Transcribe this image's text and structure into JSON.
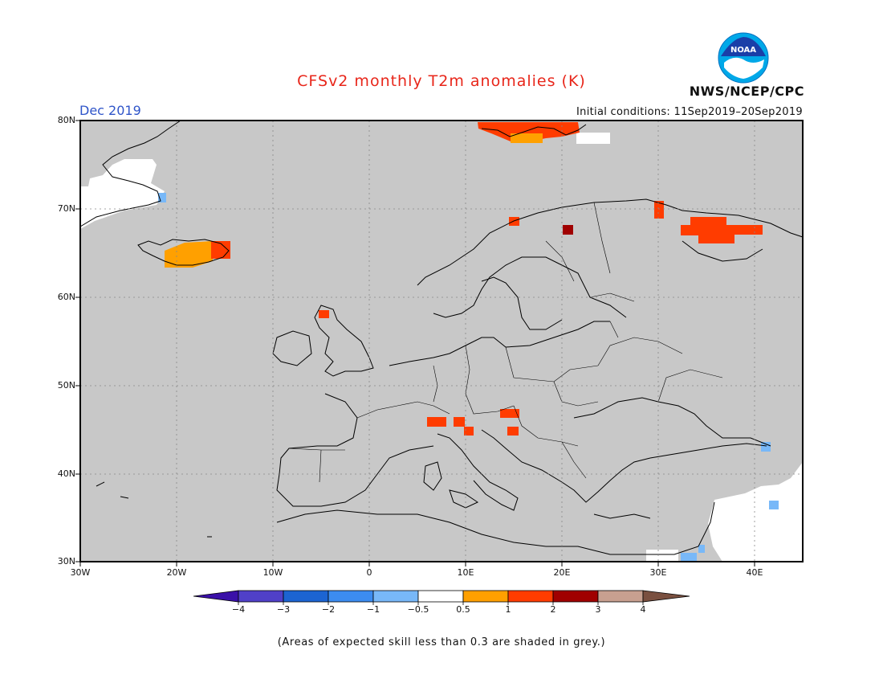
{
  "title": "CFSv2 monthly T2m anomalies (K)",
  "period": "Dec 2019",
  "initial_conditions": "Initial conditions: 11Sep2019–20Sep2019",
  "agency": "NWS/NCEP/CPC",
  "logo_text": "NOAA",
  "footnote": "(Areas of expected skill less than 0.3 are shaded in grey.)",
  "map": {
    "lon_range": [
      -30,
      45
    ],
    "lat_range": [
      30,
      80
    ],
    "grid": true,
    "background_color": "#c8c8c8",
    "lat_labels": [
      "30N",
      "40N",
      "50N",
      "60N",
      "70N",
      "80N"
    ],
    "lon_labels": [
      "30W",
      "20W",
      "10W",
      "0",
      "10E",
      "20E",
      "30E",
      "40E"
    ]
  },
  "colorbar": {
    "labels": [
      "−4",
      "−3",
      "−2",
      "−1",
      "−0.5",
      "0.5",
      "1",
      "2",
      "3",
      "4"
    ],
    "colors": [
      "#3a10a8",
      "#5040c8",
      "#1c64d2",
      "#3c8cf0",
      "#78b8f8",
      "#ffffff",
      "#ffa000",
      "#ff3c00",
      "#a00000",
      "#c8a090",
      "#7a5040"
    ]
  }
}
